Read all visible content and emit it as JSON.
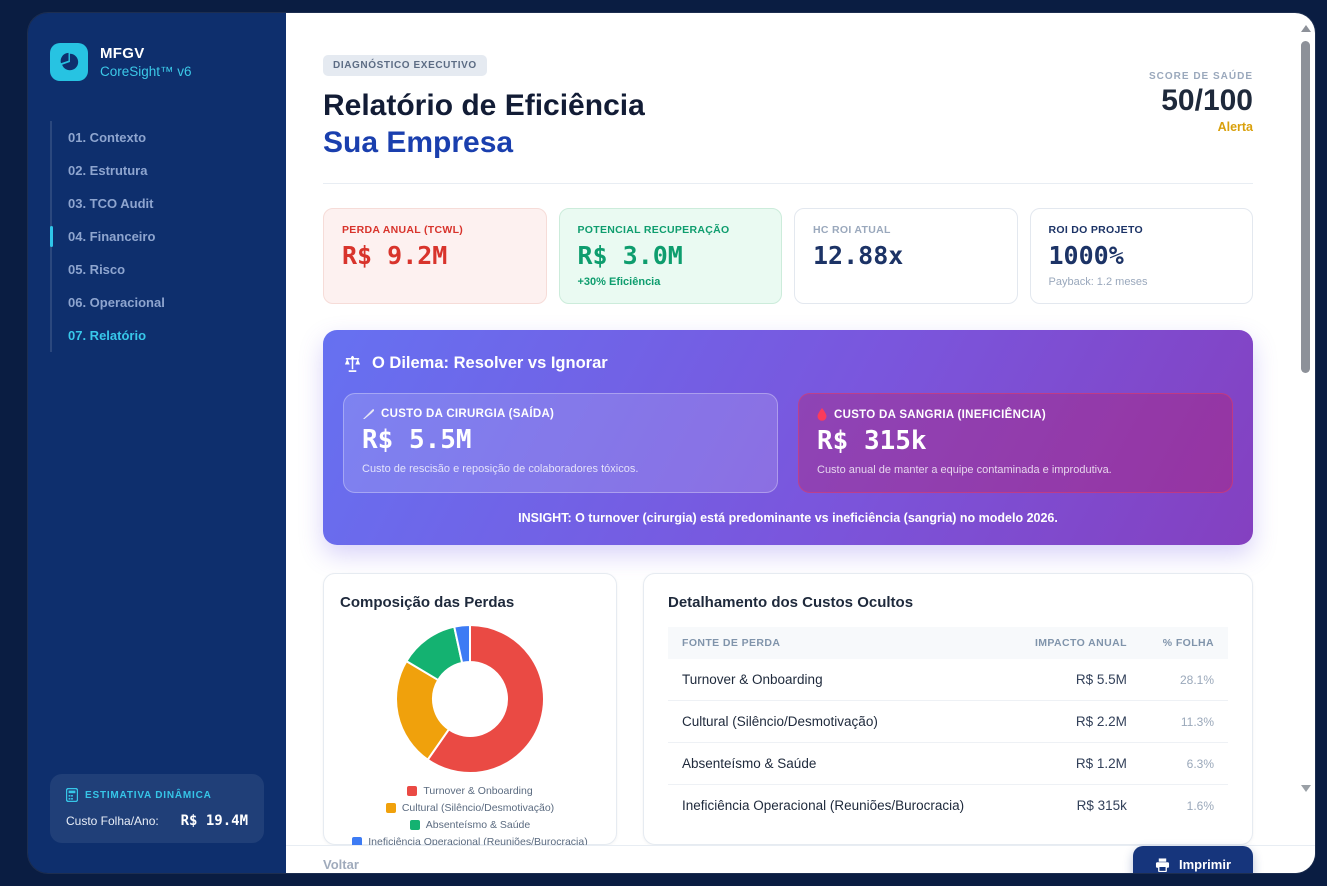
{
  "sidebar": {
    "logo": {
      "brand": "MFGV",
      "product": "CoreSight™ v6"
    },
    "nav": [
      {
        "label": "01. Contexto"
      },
      {
        "label": "02. Estrutura"
      },
      {
        "label": "03. TCO Audit"
      },
      {
        "label": "04. Financeiro",
        "indicator": true
      },
      {
        "label": "05. Risco"
      },
      {
        "label": "06. Operacional"
      },
      {
        "label": "07. Relatório",
        "active": true
      }
    ],
    "estimate": {
      "label": "ESTIMATIVA DINÂMICA",
      "row_label": "Custo Folha/Ano:",
      "row_value": "R$ 19.4M"
    }
  },
  "header": {
    "badge": "DIAGNÓSTICO EXECUTIVO",
    "title_line1": "Relatório de Eficiência",
    "title_line2": "Sua Empresa",
    "score_label": "SCORE DE SAÚDE",
    "score_value": "50/100",
    "score_status": "Alerta"
  },
  "kpis": [
    {
      "label": "PERDA ANUAL (TCWL)",
      "value": "R$ 9.2M",
      "sub": "",
      "theme": "red"
    },
    {
      "label": "POTENCIAL RECUPERAÇÃO",
      "value": "R$ 3.0M",
      "sub": "+30% Eficiência",
      "theme": "green"
    },
    {
      "label": "HC ROI ATUAL",
      "value": "12.88x",
      "sub": "",
      "theme": "plain"
    },
    {
      "label": "ROI DO PROJETO",
      "value": "1000%",
      "sub": "Payback: 1.2 meses",
      "theme": "navy"
    }
  ],
  "dilemma": {
    "title": "O Dilema: Resolver vs Ignorar",
    "left": {
      "label": "CUSTO DA CIRURGIA (SAÍDA)",
      "value": "R$ 5.5M",
      "desc": "Custo de rescisão e reposição de colaboradores tóxicos."
    },
    "right": {
      "label": "CUSTO DA SANGRIA (INEFICIÊNCIA)",
      "value": "R$ 315k",
      "desc": "Custo anual de manter a equipe contaminada e improdutiva."
    },
    "insight": "INSIGHT: O turnover (cirurgia) está predominante vs ineficiência (sangria) no modelo 2026."
  },
  "chart_data": {
    "type": "pie",
    "donut": true,
    "title": "Composição das Perdas",
    "labels": [
      "Turnover & Onboarding",
      "Cultural (Silêncio/Desmotivação)",
      "Absenteísmo & Saúde",
      "Ineficiência Operacional (Reuniões/Burocracia)"
    ],
    "values": [
      5.5,
      2.2,
      1.2,
      0.315
    ],
    "values_display": [
      "R$ 5.5M",
      "R$ 2.2M",
      "R$ 1.2M",
      "R$ 315k"
    ],
    "colors": [
      "#ea4a44",
      "#f0a10c",
      "#14b271",
      "#3d7bf4"
    ],
    "legend_position": "bottom"
  },
  "table_card": {
    "title": "Detalhamento dos Custos Ocultos",
    "columns": [
      "FONTE DE PERDA",
      "IMPACTO ANUAL",
      "% FOLHA"
    ],
    "rows": [
      {
        "source": "Turnover & Onboarding",
        "impact": "R$ 5.5M",
        "pct": "28.1%"
      },
      {
        "source": "Cultural (Silêncio/Desmotivação)",
        "impact": "R$ 2.2M",
        "pct": "11.3%"
      },
      {
        "source": "Absenteísmo & Saúde",
        "impact": "R$ 1.2M",
        "pct": "6.3%"
      },
      {
        "source": "Ineficiência Operacional (Reuniões/Burocracia)",
        "impact": "R$ 315k",
        "pct": "1.6%"
      }
    ]
  },
  "footer": {
    "back": "Voltar",
    "print": "Imprimir"
  },
  "colors": {
    "accent_cyan": "#2fc6ea",
    "sidebar_navy": "#0e2f6d",
    "alert_amber": "#d9a00b",
    "loss_red": "#d8342c",
    "gain_green": "#0e9d6e",
    "brand_navy": "#16357c"
  }
}
